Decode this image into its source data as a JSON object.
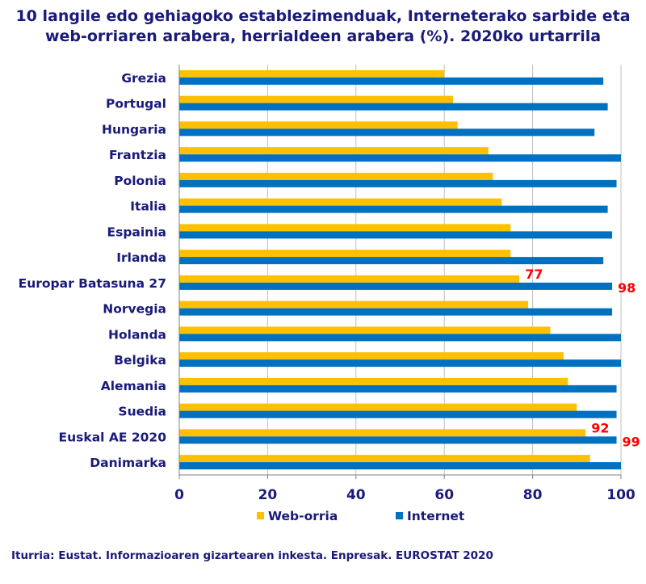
{
  "title_line1": "10 langile edo gehiagoko establezimenduak, Interneterako sarbide eta",
  "title_line2": "web-orriaren arabera, herrialdeen arabera (%). 2020ko urtarrila",
  "source": "Iturria: Eustat. Informazioaren gizartearen inkesta. Enpresak. EUROSTAT 2020",
  "colors": {
    "web": "#ffc000",
    "internet": "#0070c0",
    "text": "#1a1a7a",
    "label": "#ff0000",
    "grid": "#bfbfbf"
  },
  "chart_data": {
    "type": "bar",
    "orientation": "horizontal",
    "categories": [
      "Grezia",
      "Portugal",
      "Hungaria",
      "Frantzia",
      "Polonia",
      "Italia",
      "Espainia",
      "Irlanda",
      "Europar Batasuna 27",
      "Norvegia",
      "Holanda",
      "Belgika",
      "Alemania",
      "Suedia",
      "Euskal AE 2020",
      "Danimarka"
    ],
    "series": [
      {
        "name": "Web-orria",
        "values": [
          60,
          62,
          63,
          70,
          71,
          73,
          75,
          75,
          77,
          79,
          84,
          87,
          88,
          90,
          92,
          93
        ]
      },
      {
        "name": "Internet",
        "values": [
          96,
          97,
          94,
          100,
          99,
          97,
          98,
          96,
          98,
          98,
          100,
          100,
          99,
          99,
          99,
          100
        ]
      }
    ],
    "data_labels": [
      {
        "category": "Europar Batasuna 27",
        "series": "Web-orria",
        "text": "77"
      },
      {
        "category": "Europar Batasuna 27",
        "series": "Internet",
        "text": "98"
      },
      {
        "category": "Euskal AE 2020",
        "series": "Web-orria",
        "text": "92"
      },
      {
        "category": "Euskal AE 2020",
        "series": "Internet",
        "text": "99"
      }
    ],
    "xlim": [
      0,
      100
    ],
    "xticks": [
      0,
      20,
      40,
      60,
      80,
      100
    ],
    "grid": "vertical",
    "legend": "bottom-center"
  }
}
